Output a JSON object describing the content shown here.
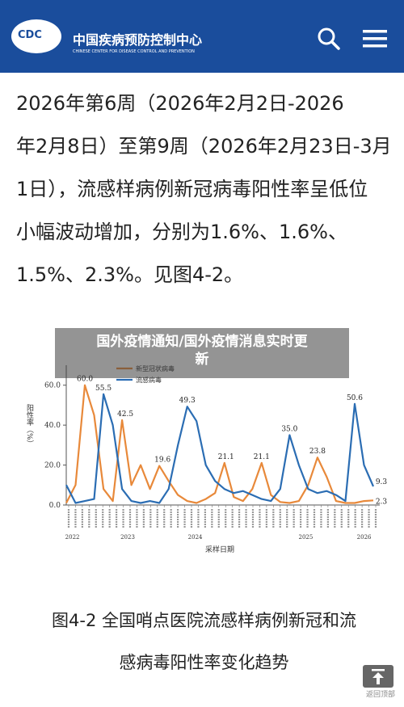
{
  "header": {
    "logo_text": "CDC",
    "org_name_cn": "中国疾病预防控制中心",
    "org_name_en": "CHINESE CENTER FOR DISEASE CONTROL AND PREVENTION",
    "brand_color": "#1a4d9c",
    "search_icon": "search-icon",
    "menu_icon": "hamburger-menu-icon"
  },
  "article": {
    "lines": [
      "2026年第6周（2026年2月2日-2026",
      "年2月8日）至第9周（2026年2月23日-3月",
      "1日），流感样病例新冠病毒阳性率呈低位",
      "小幅波动增加，分别为1.6%、1.6%、",
      "1.5%、2.3%。见图4-2。"
    ]
  },
  "overlay": {
    "title_line1": "国外疫情通知/国外疫情消息实时更",
    "title_line2": "新"
  },
  "chart_data": {
    "type": "line",
    "ylabel": "阳性率（%）",
    "xlabel": "采样日期",
    "ylim": [
      0,
      70
    ],
    "yticks": [
      "0.0",
      "20.0",
      "40.0",
      "60.0"
    ],
    "years": [
      "2022",
      "2023",
      "2024",
      "2025",
      "2026"
    ],
    "legend": "top-left",
    "series": [
      {
        "name": "新型冠状病毒",
        "color": "#e8893a",
        "values": [
          1,
          10,
          60,
          45,
          8,
          2,
          42.5,
          10,
          20,
          8,
          19.6,
          12,
          5,
          2,
          1,
          3,
          6,
          21.1,
          4,
          2,
          8,
          21.1,
          5,
          1.5,
          1,
          2,
          10,
          23.8,
          14,
          2,
          1,
          1,
          2,
          2.3
        ]
      },
      {
        "name": "流感病毒",
        "color": "#2b6db3",
        "values": [
          10,
          1,
          2,
          3,
          55.5,
          40,
          8,
          2,
          1,
          2,
          1,
          8,
          30,
          49.3,
          42,
          20,
          12,
          8,
          6,
          7,
          5,
          3,
          2,
          8,
          35.0,
          20,
          8,
          6,
          7,
          5,
          2,
          50.6,
          20,
          9.3
        ]
      }
    ],
    "annotations": [
      {
        "label": "60.0"
      },
      {
        "label": "55.5"
      },
      {
        "label": "42.5"
      },
      {
        "label": "19.6"
      },
      {
        "label": "49.3"
      },
      {
        "label": "21.1"
      },
      {
        "label": "21.1"
      },
      {
        "label": "35.0"
      },
      {
        "label": "23.8"
      },
      {
        "label": "50.6"
      },
      {
        "label": "9.3"
      },
      {
        "label": "2.3"
      }
    ]
  },
  "caption": {
    "line1": "图4-2 全国哨点医院流感样病例新冠和流",
    "line2": "感病毒阳性率变化趋势"
  },
  "back_to_top": {
    "label": "返回顶部",
    "icon": "arrow-up-icon"
  }
}
